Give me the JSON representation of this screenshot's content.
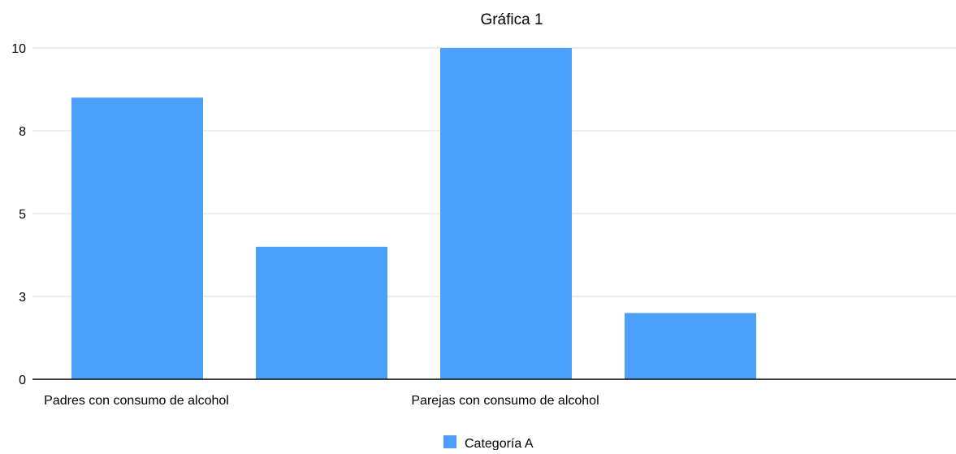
{
  "chart_data": {
    "type": "bar",
    "title": "Gráfica 1",
    "xlabel": "",
    "ylabel": "",
    "categories": [
      "Padres con consumo de alcohol",
      "",
      "Parejas con consumo de alcohol",
      "",
      ""
    ],
    "series": [
      {
        "name": "Categoría A",
        "values": [
          8.5,
          4.0,
          10.0,
          2.0,
          null
        ],
        "color": "#4aa0fa"
      }
    ],
    "yticks": [
      {
        "value": 0,
        "label": "0"
      },
      {
        "value": 2.5,
        "label": "3"
      },
      {
        "value": 5,
        "label": "5"
      },
      {
        "value": 7.5,
        "label": "8"
      },
      {
        "value": 10,
        "label": "10"
      }
    ],
    "ylim": [
      0,
      10
    ],
    "grid": true,
    "legend_position": "bottom",
    "gridline_color": "#d9d9d9",
    "axis_color": "#000000"
  }
}
